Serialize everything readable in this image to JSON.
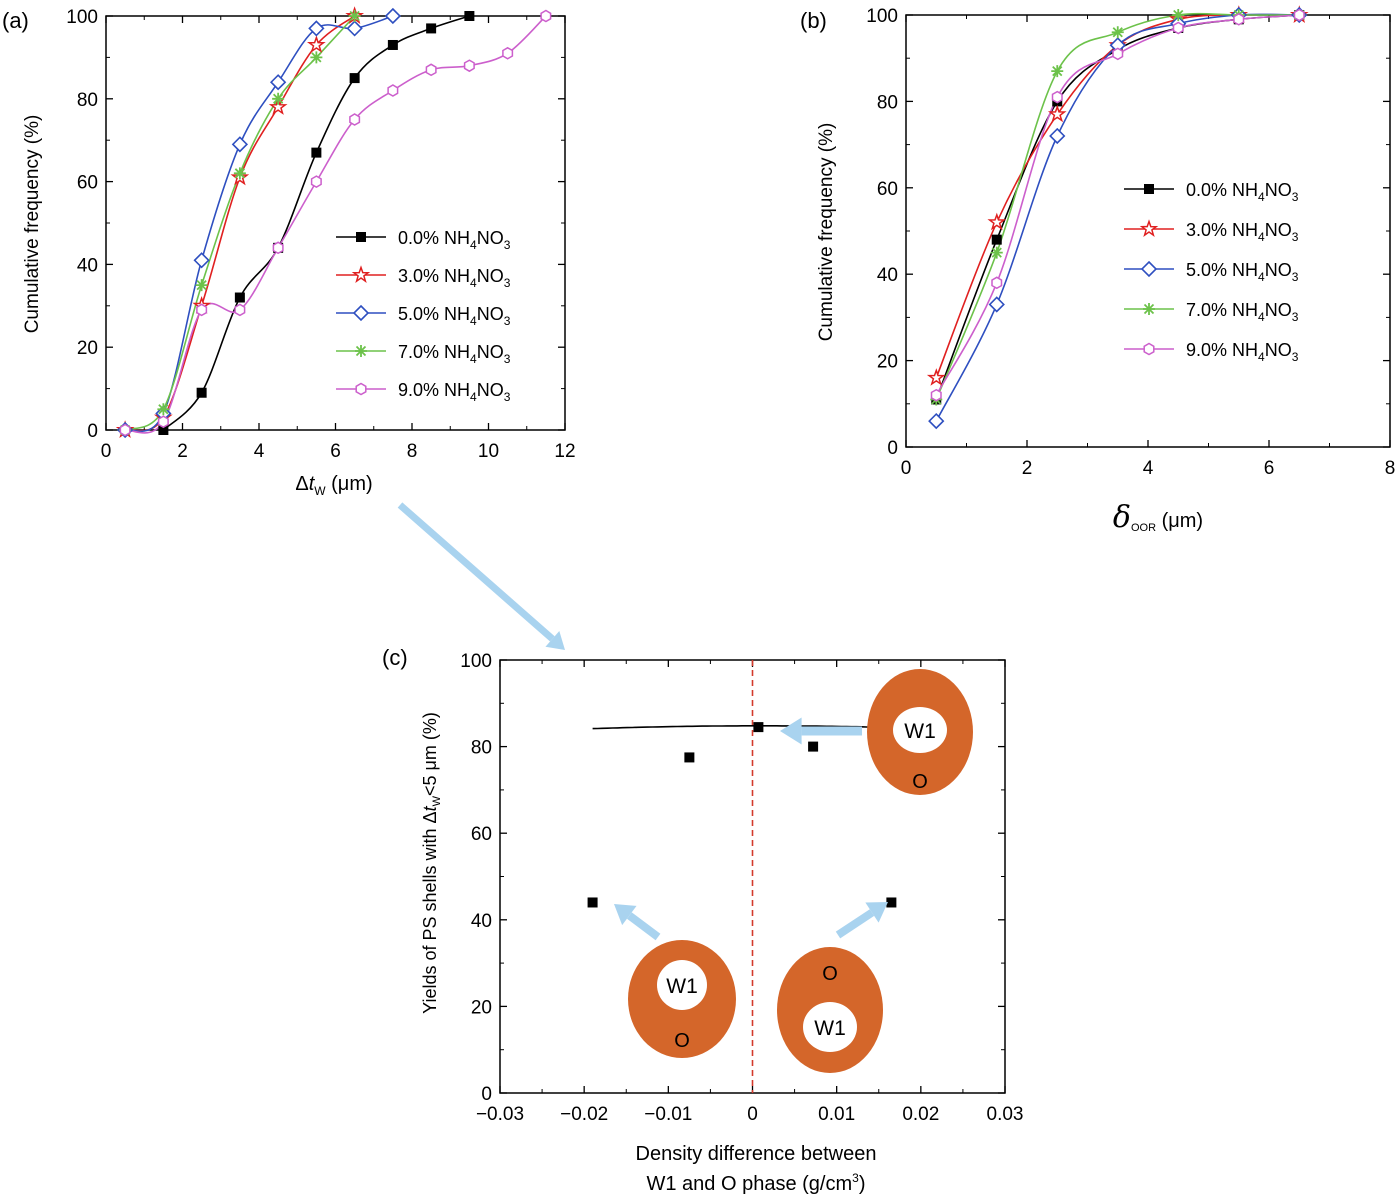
{
  "figure": {
    "arrow_color": "#a9d3ef",
    "shell_color": "#d4662a"
  },
  "chart_data": [
    {
      "id": "a",
      "panel_label": "(a)",
      "type": "line",
      "xlabel": {
        "prefix": "Δ",
        "var": "t",
        "sub": "W",
        "unit": " (μm)"
      },
      "ylabel": "Cumulative frequency (%)",
      "xlim": [
        0,
        12
      ],
      "ylim": [
        0,
        100
      ],
      "xticks": [
        "0",
        "2",
        "4",
        "6",
        "8",
        "10",
        "12"
      ],
      "yticks": [
        "0",
        "20",
        "40",
        "60",
        "80",
        "100"
      ],
      "legend_position": "center-right",
      "series": [
        {
          "name": "0.0% NH4NO3",
          "label": {
            "pct": "0.0%",
            "formula": "NH",
            "s1": "4",
            "mid": "NO",
            "s2": "3"
          },
          "marker": "square",
          "color": "#000000",
          "x": [
            1.5,
            2.5,
            3.5,
            4.5,
            5.5,
            6.5,
            7.5,
            8.5,
            9.5
          ],
          "y": [
            0,
            9,
            32,
            44,
            67,
            85,
            93,
            97,
            100
          ]
        },
        {
          "name": "3.0% NH4NO3",
          "label": {
            "pct": "3.0%",
            "formula": "NH",
            "s1": "4",
            "mid": "NO",
            "s2": "3"
          },
          "marker": "star",
          "color": "#e02020",
          "x": [
            0.5,
            1.5,
            2.5,
            3.5,
            4.5,
            5.5,
            6.5
          ],
          "y": [
            0,
            3,
            30,
            61,
            78,
            93,
            100
          ]
        },
        {
          "name": "5.0% NH4NO3",
          "label": {
            "pct": "5.0%",
            "formula": "NH",
            "s1": "4",
            "mid": "NO",
            "s2": "3"
          },
          "marker": "diamond",
          "color": "#2e4fc0",
          "x": [
            0.5,
            1.5,
            2.5,
            3.5,
            4.5,
            5.5,
            6.5,
            7.5
          ],
          "y": [
            0,
            4,
            41,
            69,
            84,
            97,
            97,
            100
          ]
        },
        {
          "name": "7.0% NH4NO3",
          "label": {
            "pct": "7.0%",
            "formula": "NH",
            "s1": "4",
            "mid": "NO",
            "s2": "3"
          },
          "marker": "asterisk",
          "color": "#6cc24a",
          "x": [
            0.5,
            1.5,
            2.5,
            3.5,
            4.5,
            5.5,
            6.5
          ],
          "y": [
            0,
            5,
            35,
            62,
            80,
            90,
            100
          ]
        },
        {
          "name": "9.0% NH4NO3",
          "label": {
            "pct": "9.0%",
            "formula": "NH",
            "s1": "4",
            "mid": "NO",
            "s2": "3"
          },
          "marker": "hexagon",
          "color": "#cc5fcc",
          "x": [
            0.5,
            1.5,
            2.5,
            3.5,
            4.5,
            5.5,
            6.5,
            7.5,
            8.5,
            9.5,
            10.5,
            11.5
          ],
          "y": [
            0,
            2,
            29,
            29,
            44,
            60,
            75,
            82,
            87,
            88,
            91,
            100
          ]
        }
      ]
    },
    {
      "id": "b",
      "panel_label": "(b)",
      "type": "line",
      "xlabel": {
        "prefix": "",
        "var": "δ",
        "sub": "OOR",
        "unit": " (μm)"
      },
      "ylabel": "Cumulative frequency (%)",
      "xlim": [
        0,
        8
      ],
      "ylim": [
        0,
        100
      ],
      "xticks": [
        "0",
        "2",
        "4",
        "6",
        "8"
      ],
      "yticks": [
        "0",
        "20",
        "40",
        "60",
        "80",
        "100"
      ],
      "legend_position": "center-right",
      "series": [
        {
          "name": "0.0% NH4NO3",
          "label": {
            "pct": "0.0%",
            "formula": "NH",
            "s1": "4",
            "mid": "NO",
            "s2": "3"
          },
          "marker": "square",
          "color": "#000000",
          "x": [
            0.5,
            1.5,
            2.5,
            3.5,
            4.5,
            5.5,
            6.5
          ],
          "y": [
            11,
            48,
            80,
            92,
            97,
            99,
            100
          ]
        },
        {
          "name": "3.0% NH4NO3",
          "label": {
            "pct": "3.0%",
            "formula": "NH",
            "s1": "4",
            "mid": "NO",
            "s2": "3"
          },
          "marker": "star",
          "color": "#e02020",
          "x": [
            0.5,
            1.5,
            2.5,
            3.5,
            4.5,
            5.5,
            6.5
          ],
          "y": [
            16,
            52,
            77,
            93,
            99,
            100,
            100
          ]
        },
        {
          "name": "5.0% NH4NO3",
          "label": {
            "pct": "5.0%",
            "formula": "NH",
            "s1": "4",
            "mid": "NO",
            "s2": "3"
          },
          "marker": "diamond",
          "color": "#2e4fc0",
          "x": [
            0.5,
            1.5,
            2.5,
            3.5,
            4.5,
            5.5,
            6.5
          ],
          "y": [
            6,
            33,
            72,
            93,
            98,
            100,
            100
          ]
        },
        {
          "name": "7.0% NH4NO3",
          "label": {
            "pct": "7.0%",
            "formula": "NH",
            "s1": "4",
            "mid": "NO",
            "s2": "3"
          },
          "marker": "asterisk",
          "color": "#6cc24a",
          "x": [
            0.5,
            1.5,
            2.5,
            3.5,
            4.5,
            5.5,
            6.5
          ],
          "y": [
            11,
            45,
            87,
            96,
            100,
            100,
            100
          ]
        },
        {
          "name": "9.0% NH4NO3",
          "label": {
            "pct": "9.0%",
            "formula": "NH",
            "s1": "4",
            "mid": "NO",
            "s2": "3"
          },
          "marker": "hexagon",
          "color": "#cc5fcc",
          "x": [
            0.5,
            1.5,
            2.5,
            3.5,
            4.5,
            5.5,
            6.5
          ],
          "y": [
            12,
            38,
            81,
            91,
            97,
            99,
            100
          ]
        }
      ]
    },
    {
      "id": "c",
      "panel_label": "(c)",
      "type": "scatter",
      "xlabel_lines": [
        "Density difference between",
        "W1 and O phase (g/cm"
      ],
      "xlabel_sup": "3",
      "xlabel_close": ")",
      "ylabel": {
        "pre": "Yields of PS shells with Δ",
        "var": "t",
        "sub": "W",
        "post": "<5 μm (%)"
      },
      "xlim": [
        -0.03,
        0.03
      ],
      "ylim": [
        0,
        100
      ],
      "xticks": [
        "−0.03",
        "−0.02",
        "−0.01",
        "0",
        "0.01",
        "0.02",
        "0.03"
      ],
      "yticks": [
        "0",
        "20",
        "40",
        "60",
        "80",
        "100"
      ],
      "reference_line_x": 0,
      "reference_line_color": "#d33a2c",
      "points": {
        "x": [
          -0.019,
          -0.0075,
          0.0007,
          0.0072,
          0.0165
        ],
        "y": [
          44,
          77.5,
          84.5,
          80,
          44
        ]
      },
      "fit": {
        "type": "quadratic",
        "a": -1650,
        "b": 3.0,
        "c": 84.8,
        "x_range": [
          -0.019,
          0.0165
        ]
      },
      "annotations": [
        {
          "inner": "W1",
          "outer": "O",
          "inner_position": "center"
        },
        {
          "inner": "W1",
          "outer": "O",
          "inner_position": "top"
        },
        {
          "inner": "W1",
          "outer": "O",
          "inner_position": "bottom"
        }
      ]
    }
  ]
}
